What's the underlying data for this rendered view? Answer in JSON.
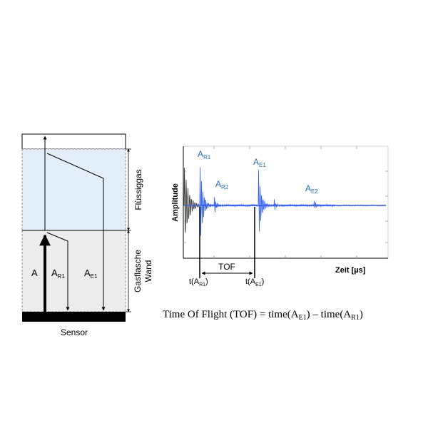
{
  "colors": {
    "liquid_fill": "#e4eef8",
    "wall_fill": "#ececec",
    "sensor": "#000000",
    "line": "#000000",
    "label_blue": "#2b6fb5",
    "signal_blue": "#2f5fff",
    "signal_dark": "#333333",
    "frame": "#c8c8c8"
  },
  "left": {
    "side_label_liquid": "Flüssiggas",
    "side_label_wall_line1": "Gasflasche",
    "side_label_wall_line2": "Wand",
    "path_a": {
      "main": "A",
      "sub": ""
    },
    "path_r1": {
      "main": "A",
      "sub": "R1"
    },
    "path_e1": {
      "main": "A",
      "sub": "E1"
    },
    "sensor_label": "Sensor"
  },
  "plot": {
    "ylabel": "Amplitude",
    "xlabel": "Zeit [µs]",
    "peaks": [
      {
        "main": "A",
        "sub": "R1"
      },
      {
        "main": "A",
        "sub": "R2"
      },
      {
        "main": "A",
        "sub": "E1"
      },
      {
        "main": "A",
        "sub": "E2"
      }
    ],
    "t_r1": {
      "pre": "t(A",
      "sub": "R1",
      "post": ")"
    },
    "t_e1": {
      "pre": "t(A",
      "sub": "E1",
      "post": ")"
    },
    "tof_label": "TOF"
  },
  "formula": {
    "lhs": "Time Of Flight (TOF) = time(A",
    "sub1": "E1",
    "mid": ") – time(A",
    "sub2": "R1",
    "end": ")"
  }
}
